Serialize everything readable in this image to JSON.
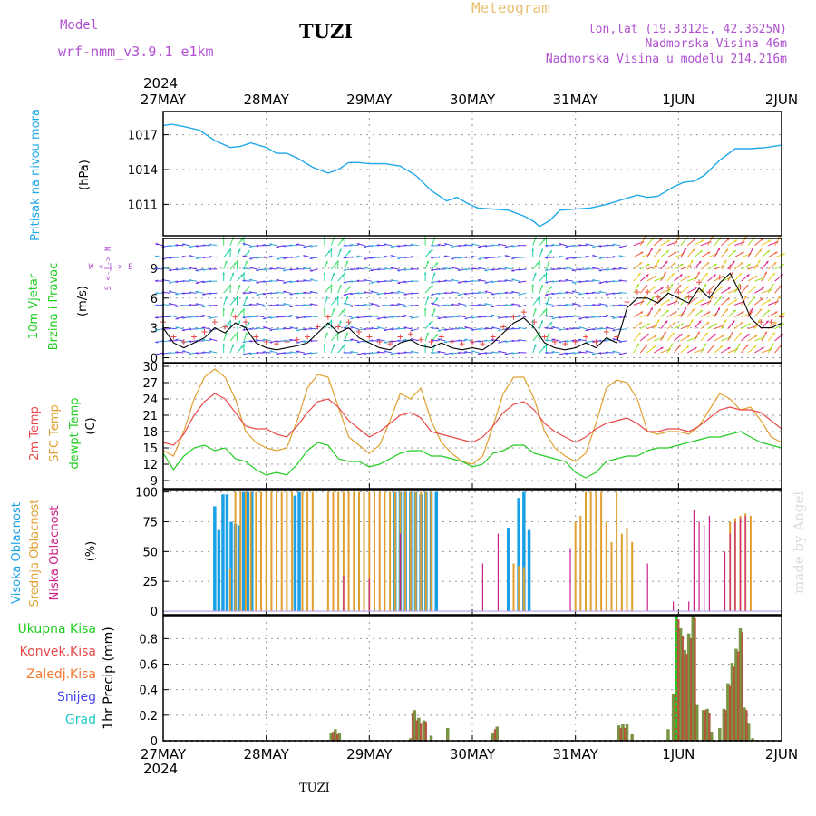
{
  "header": {
    "model_label": "Model",
    "model_name": "wrf-nmm_v3.9.1 e1km",
    "station": "TUZI",
    "product": "Meteogram",
    "lonlat": "lon,lat (19.3312E, 42.3625N)",
    "altitude": "Nadmorska Visina 46m",
    "model_altitude": "Nadmorska Visina u modelu 214.216m",
    "year_top": "2024",
    "year_bottom": "2024",
    "footer_station": "TUZI",
    "credit": "made by Angel"
  },
  "colors": {
    "pressure": "#20a8e8",
    "wind_label": "#22cc22",
    "temp2m": "#e84a4a",
    "sfc": "#e0a030",
    "dewpt": "#22cc22",
    "high_cloud": "#1aa0e6",
    "mid_cloud": "#e0a030",
    "low_cloud": "#cc2288",
    "total_precip": "#22cc22",
    "conv_precip": "#e84a4a",
    "frozen_precip": "#f07830",
    "snow": "#4444ee",
    "hail": "#20c8c8",
    "purple_text": "#b050d0",
    "meteogram_title": "#e8c070"
  },
  "chart_data": [
    {
      "type": "line",
      "panel": "pressure",
      "ylabel_left": "Pritisak na nivou mora",
      "ylabel_unit": "(hPa)",
      "x_ticks": [
        "27MAY",
        "28MAY",
        "29MAY",
        "30MAY",
        "31MAY",
        "1JUN",
        "2JUN"
      ],
      "ylim": [
        1008.3,
        1019
      ],
      "y_ticks": [
        1011,
        1014,
        1017
      ],
      "grid": true,
      "series": [
        {
          "x": [
            0,
            0.08,
            0.2,
            0.35,
            0.5,
            0.65,
            0.75,
            0.85,
            1.0,
            1.1,
            1.2,
            1.3,
            1.45,
            1.6,
            1.7,
            1.8,
            1.9,
            2.0,
            2.15,
            2.3,
            2.45,
            2.6,
            2.75,
            2.85,
            2.95,
            3.05,
            3.2,
            3.35,
            3.5,
            3.6,
            3.65,
            3.75,
            3.85,
            4.0,
            4.15,
            4.3,
            4.45,
            4.6,
            4.7,
            4.8,
            4.95,
            5.05,
            5.15,
            5.25,
            5.4,
            5.55,
            5.7,
            5.85,
            6.0
          ],
          "values": [
            1017.8,
            1017.9,
            1017.7,
            1017.4,
            1016.5,
            1015.9,
            1016.0,
            1016.3,
            1015.9,
            1015.4,
            1015.4,
            1015.0,
            1014.2,
            1013.7,
            1014.0,
            1014.6,
            1014.6,
            1014.5,
            1014.5,
            1014.3,
            1013.5,
            1012.2,
            1011.3,
            1011.6,
            1011.1,
            1010.7,
            1010.6,
            1010.5,
            1010.0,
            1009.5,
            1009.1,
            1009.6,
            1010.5,
            1010.6,
            1010.7,
            1011.0,
            1011.4,
            1011.8,
            1011.6,
            1011.7,
            1012.5,
            1012.9,
            1013.0,
            1013.5,
            1014.8,
            1015.8,
            1015.8,
            1015.9,
            1016.1
          ]
        }
      ]
    },
    {
      "type": "line",
      "panel": "wind",
      "ylabel_left": [
        "10m Vjetar",
        "Brzina i Pravac"
      ],
      "ylabel_unit": "(m/s)",
      "compass": "W <-|-> E",
      "compass_v": "S <-|-> N",
      "ylim": [
        -0.5,
        12
      ],
      "y_ticks": [
        0,
        3,
        6,
        9
      ],
      "grid": true,
      "series": [
        {
          "name": "speed",
          "x": [
            0,
            0.1,
            0.2,
            0.3,
            0.4,
            0.5,
            0.6,
            0.7,
            0.8,
            0.9,
            1.0,
            1.1,
            1.2,
            1.3,
            1.4,
            1.5,
            1.6,
            1.7,
            1.8,
            1.9,
            2.0,
            2.1,
            2.2,
            2.3,
            2.4,
            2.5,
            2.6,
            2.7,
            2.8,
            2.9,
            3.0,
            3.1,
            3.2,
            3.3,
            3.4,
            3.5,
            3.6,
            3.7,
            3.8,
            3.9,
            4.0,
            4.1,
            4.2,
            4.3,
            4.4,
            4.5,
            4.6,
            4.7,
            4.8,
            4.9,
            5.0,
            5.1,
            5.2,
            5.3,
            5.4,
            5.5,
            5.6,
            5.7,
            5.8,
            5.9,
            6.0
          ],
          "values": [
            3.0,
            1.5,
            1.0,
            1.5,
            2.0,
            3.0,
            2.5,
            3.5,
            3.0,
            1.5,
            1.0,
            0.8,
            1.0,
            1.2,
            1.5,
            2.5,
            3.5,
            2.5,
            3.0,
            2.0,
            1.5,
            1.0,
            0.8,
            1.5,
            1.8,
            1.2,
            1.0,
            1.5,
            1.0,
            0.8,
            1.0,
            0.8,
            1.5,
            2.5,
            3.5,
            4.0,
            3.0,
            1.5,
            1.0,
            0.8,
            1.0,
            1.5,
            1.0,
            2.0,
            1.5,
            5.0,
            6.0,
            6.0,
            5.5,
            6.5,
            6.0,
            5.5,
            7.0,
            6.0,
            7.5,
            8.5,
            6.5,
            4.0,
            3.0,
            3.0,
            3.5
          ]
        }
      ]
    },
    {
      "type": "line",
      "panel": "temperature",
      "ylabel_left": [
        "2m Temp",
        "SFC Temp",
        "dewpt Temp"
      ],
      "ylabel_unit": "(C)",
      "ylim": [
        7.5,
        30.5
      ],
      "y_ticks": [
        9,
        12,
        15,
        18,
        21,
        24,
        27,
        30
      ],
      "grid": true,
      "series": [
        {
          "name": "2m Temp",
          "x": [
            0,
            0.1,
            0.2,
            0.3,
            0.4,
            0.5,
            0.6,
            0.7,
            0.8,
            0.9,
            1.0,
            1.1,
            1.2,
            1.3,
            1.4,
            1.5,
            1.6,
            1.7,
            1.8,
            1.9,
            2.0,
            2.1,
            2.2,
            2.3,
            2.4,
            2.5,
            2.6,
            2.7,
            2.8,
            2.9,
            3.0,
            3.1,
            3.2,
            3.3,
            3.4,
            3.5,
            3.6,
            3.7,
            3.8,
            3.9,
            4.0,
            4.1,
            4.2,
            4.3,
            4.4,
            4.5,
            4.6,
            4.7,
            4.8,
            4.9,
            5.0,
            5.1,
            5.2,
            5.3,
            5.4,
            5.5,
            5.6,
            5.7,
            5.8,
            5.9,
            6.0
          ],
          "values": [
            16.0,
            15.5,
            17.5,
            21.0,
            23.5,
            25.0,
            24.0,
            21.5,
            19.0,
            18.5,
            18.5,
            17.5,
            17.0,
            19.0,
            21.5,
            23.5,
            24.0,
            22.5,
            20.0,
            18.5,
            17.0,
            18.0,
            19.5,
            21.0,
            21.5,
            20.5,
            18.0,
            17.5,
            17.0,
            16.5,
            16.0,
            17.0,
            19.0,
            21.5,
            23.0,
            23.5,
            22.0,
            19.5,
            18.0,
            17.0,
            16.0,
            17.0,
            18.5,
            19.5,
            20.0,
            20.5,
            19.5,
            18.0,
            18.0,
            18.5,
            18.5,
            18.0,
            19.0,
            20.5,
            22.0,
            22.5,
            22.0,
            22.0,
            21.5,
            20.0,
            18.5
          ]
        },
        {
          "name": "SFC Temp",
          "x": [
            0,
            0.1,
            0.2,
            0.3,
            0.4,
            0.5,
            0.6,
            0.7,
            0.8,
            0.9,
            1.0,
            1.1,
            1.2,
            1.3,
            1.4,
            1.5,
            1.6,
            1.7,
            1.8,
            1.9,
            2.0,
            2.1,
            2.2,
            2.3,
            2.4,
            2.5,
            2.6,
            2.7,
            2.8,
            2.9,
            3.0,
            3.1,
            3.2,
            3.3,
            3.4,
            3.5,
            3.6,
            3.7,
            3.8,
            3.9,
            4.0,
            4.1,
            4.2,
            4.3,
            4.4,
            4.5,
            4.6,
            4.7,
            4.8,
            4.9,
            5.0,
            5.1,
            5.2,
            5.3,
            5.4,
            5.5,
            5.6,
            5.7,
            5.8,
            5.9,
            6.0
          ],
          "values": [
            14.5,
            13.5,
            18.0,
            24.0,
            28.0,
            29.5,
            28.0,
            24.0,
            18.0,
            16.0,
            15.0,
            14.5,
            15.0,
            20.0,
            26.0,
            28.5,
            28.0,
            22.5,
            17.0,
            15.5,
            14.0,
            15.5,
            20.0,
            25.0,
            24.0,
            26.0,
            20.0,
            16.0,
            14.0,
            12.5,
            12.0,
            13.5,
            19.0,
            25.0,
            28.0,
            28.0,
            24.0,
            18.0,
            15.0,
            13.5,
            12.5,
            14.0,
            19.5,
            26.0,
            27.5,
            27.0,
            24.0,
            18.0,
            17.5,
            18.0,
            18.0,
            17.5,
            19.0,
            22.0,
            25.0,
            24.0,
            22.0,
            22.5,
            20.0,
            17.0,
            16.0
          ]
        },
        {
          "name": "dewpt Temp",
          "x": [
            0,
            0.1,
            0.2,
            0.3,
            0.4,
            0.5,
            0.6,
            0.7,
            0.8,
            0.9,
            1.0,
            1.1,
            1.2,
            1.3,
            1.4,
            1.5,
            1.6,
            1.7,
            1.8,
            1.9,
            2.0,
            2.1,
            2.2,
            2.3,
            2.4,
            2.5,
            2.6,
            2.7,
            2.8,
            2.9,
            3.0,
            3.1,
            3.2,
            3.3,
            3.4,
            3.5,
            3.6,
            3.7,
            3.8,
            3.9,
            4.0,
            4.1,
            4.2,
            4.3,
            4.4,
            4.5,
            4.6,
            4.7,
            4.8,
            4.9,
            5.0,
            5.1,
            5.2,
            5.3,
            5.4,
            5.5,
            5.6,
            5.7,
            5.8,
            5.9,
            6.0
          ],
          "values": [
            14.0,
            11.0,
            13.5,
            15.0,
            15.5,
            14.5,
            15.0,
            13.0,
            12.5,
            11.0,
            10.0,
            10.5,
            10.0,
            12.0,
            14.5,
            16.0,
            15.5,
            13.0,
            12.5,
            12.5,
            11.5,
            12.0,
            13.0,
            14.0,
            14.5,
            14.5,
            13.5,
            13.5,
            13.0,
            12.5,
            11.5,
            12.0,
            14.0,
            14.5,
            15.5,
            15.5,
            14.0,
            13.5,
            13.0,
            12.5,
            10.5,
            9.5,
            10.5,
            12.5,
            13.0,
            13.5,
            13.5,
            14.5,
            15.0,
            15.0,
            15.5,
            16.0,
            16.5,
            17.0,
            17.0,
            17.5,
            18.0,
            17.0,
            16.0,
            15.5,
            15.0
          ]
        }
      ]
    },
    {
      "type": "bar",
      "panel": "cloud",
      "ylabel_left": [
        "Visoka Oblacnost",
        "Srednja Oblacnost",
        "Niska Oblacnost"
      ],
      "ylabel_unit": "(%)",
      "ylim": [
        -3,
        102
      ],
      "y_ticks": [
        0,
        25,
        50,
        75,
        100
      ],
      "grid": true,
      "series": [
        {
          "name": "Visoka Oblacnost",
          "x": [
            0.5,
            0.54,
            0.58,
            0.62,
            0.66,
            0.7,
            0.74,
            0.78,
            0.82,
            0.86,
            1.28,
            1.32,
            2.25,
            2.3,
            2.35,
            2.4,
            2.45,
            2.5,
            2.55,
            2.6,
            2.65,
            3.35,
            3.45,
            3.5,
            3.55
          ],
          "values": [
            88,
            68,
            98,
            98,
            75,
            73,
            72,
            100,
            100,
            100,
            97,
            100,
            100,
            100,
            100,
            100,
            100,
            98,
            100,
            100,
            100,
            70,
            95,
            100,
            68
          ]
        },
        {
          "name": "Srednja Oblacnost",
          "x": [
            0.65,
            0.7,
            0.75,
            0.8,
            0.85,
            0.9,
            0.95,
            1.0,
            1.05,
            1.1,
            1.15,
            1.2,
            1.25,
            1.35,
            1.4,
            1.45,
            1.6,
            1.65,
            1.7,
            1.75,
            1.8,
            1.85,
            1.9,
            1.95,
            2.0,
            2.05,
            2.1,
            2.15,
            2.2,
            2.25,
            2.3,
            2.35,
            2.4,
            2.45,
            2.5,
            2.55,
            2.6,
            3.4,
            3.45,
            3.5,
            4.0,
            4.05,
            4.1,
            4.15,
            4.2,
            4.25,
            4.3,
            4.35,
            4.4,
            4.45,
            4.5,
            4.55,
            5.5,
            5.55,
            5.6,
            5.65,
            5.7
          ],
          "values": [
            35,
            100,
            100,
            100,
            100,
            100,
            100,
            100,
            100,
            100,
            100,
            100,
            100,
            100,
            100,
            100,
            100,
            100,
            100,
            100,
            100,
            100,
            100,
            100,
            100,
            100,
            100,
            100,
            100,
            100,
            100,
            100,
            100,
            100,
            100,
            100,
            100,
            40,
            38,
            37,
            75,
            80,
            100,
            100,
            100,
            100,
            75,
            58,
            100,
            65,
            70,
            58,
            75,
            78,
            80,
            82,
            80
          ]
        },
        {
          "name": "Niska Oblacnost",
          "x": [
            1.75,
            2.0,
            2.3,
            3.1,
            3.25,
            3.95,
            4.7,
            4.95,
            5.1,
            5.15,
            5.2,
            5.25,
            5.3,
            5.45,
            5.5,
            5.55,
            5.6,
            5.65
          ],
          "values": [
            30,
            27,
            65,
            40,
            65,
            53,
            40,
            8,
            8,
            85,
            75,
            72,
            80,
            50,
            65,
            75,
            78,
            80
          ]
        }
      ]
    },
    {
      "type": "bar",
      "panel": "precip",
      "ylabel_left": [
        "Ukupna Kisa",
        "Konvek.Kisa",
        "Zaledj.Kisa",
        "Snijeg",
        "Grad"
      ],
      "ylabel_unit": "1hr Precip (mm)",
      "ylim": [
        0,
        0.98
      ],
      "y_ticks": [
        0,
        0.2,
        0.4,
        0.6,
        0.8
      ],
      "grid": true,
      "series": [
        {
          "name": "Ukupna Kisa",
          "x": [
            1.63,
            1.67,
            1.71,
            2.4,
            2.44,
            2.48,
            2.53,
            2.6,
            2.76,
            3.2,
            3.24,
            4.42,
            4.46,
            4.5,
            4.55,
            4.9,
            4.95,
            4.98,
            5.02,
            5.06,
            5.1,
            5.14,
            5.18,
            5.24,
            5.28,
            5.32,
            5.4,
            5.44,
            5.48,
            5.52,
            5.56,
            5.6,
            5.64,
            5.68,
            5.72
          ],
          "values": [
            0.06,
            0.09,
            0.06,
            0.02,
            0.24,
            0.18,
            0.16,
            0.04,
            0.1,
            0.06,
            0.11,
            0.12,
            0.13,
            0.13,
            0.05,
            0.09,
            0.37,
            0.98,
            0.88,
            0.71,
            0.84,
            0.98,
            0.28,
            0.24,
            0.25,
            0.07,
            0.1,
            0.25,
            0.45,
            0.61,
            0.72,
            0.88,
            0.26,
            0.14,
            0.02
          ]
        },
        {
          "name": "Konvek.Kisa",
          "x": [
            1.65,
            1.69,
            2.42,
            2.46,
            2.5,
            2.55,
            3.22,
            4.44,
            4.48,
            4.97,
            5.0,
            5.04,
            5.08,
            5.12,
            5.16,
            5.26,
            5.3,
            5.46,
            5.5,
            5.54,
            5.58,
            5.62,
            5.66
          ],
          "values": [
            0.07,
            0.05,
            0.22,
            0.16,
            0.14,
            0.15,
            0.09,
            0.1,
            0.1,
            0.36,
            0.95,
            0.82,
            0.68,
            0.8,
            0.96,
            0.24,
            0.22,
            0.24,
            0.43,
            0.58,
            0.7,
            0.85,
            0.24
          ]
        }
      ]
    }
  ]
}
